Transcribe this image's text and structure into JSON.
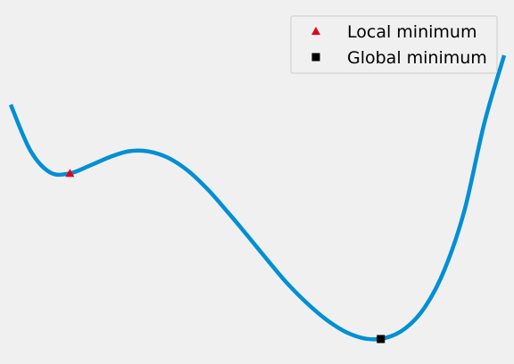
{
  "chart_data": {
    "type": "line",
    "title": "",
    "xlabel": "",
    "ylabel": "",
    "grid": false,
    "axes_visible": false,
    "legend_location": "top-right",
    "xlim": [
      0.0,
      1.0
    ],
    "ylim": [
      0.0,
      1.0
    ],
    "series": [
      {
        "color": "#008fd5",
        "x": [
          0.0,
          0.04,
          0.08,
          0.12,
          0.16,
          0.2,
          0.24,
          0.28,
          0.32,
          0.36,
          0.4,
          0.44,
          0.48,
          0.52,
          0.56,
          0.6,
          0.64,
          0.68,
          0.72,
          0.76,
          0.8,
          0.84,
          0.88,
          0.92,
          0.96,
          1.0
        ],
        "y": [
          0.826,
          0.664,
          0.587,
          0.584,
          0.611,
          0.641,
          0.662,
          0.661,
          0.638,
          0.592,
          0.526,
          0.447,
          0.364,
          0.279,
          0.197,
          0.127,
          0.068,
          0.024,
          0.001,
          0.004,
          0.038,
          0.114,
          0.248,
          0.457,
          0.763,
          1.0
        ]
      }
    ],
    "markers": [
      {
        "label": "Local minimum",
        "shape": "triangle",
        "color": "#e5001c",
        "x": 0.12,
        "y": 0.584
      },
      {
        "label": "Global minimum",
        "shape": "square",
        "color": "#000000",
        "x": 0.75,
        "y": 0.0
      }
    ]
  }
}
